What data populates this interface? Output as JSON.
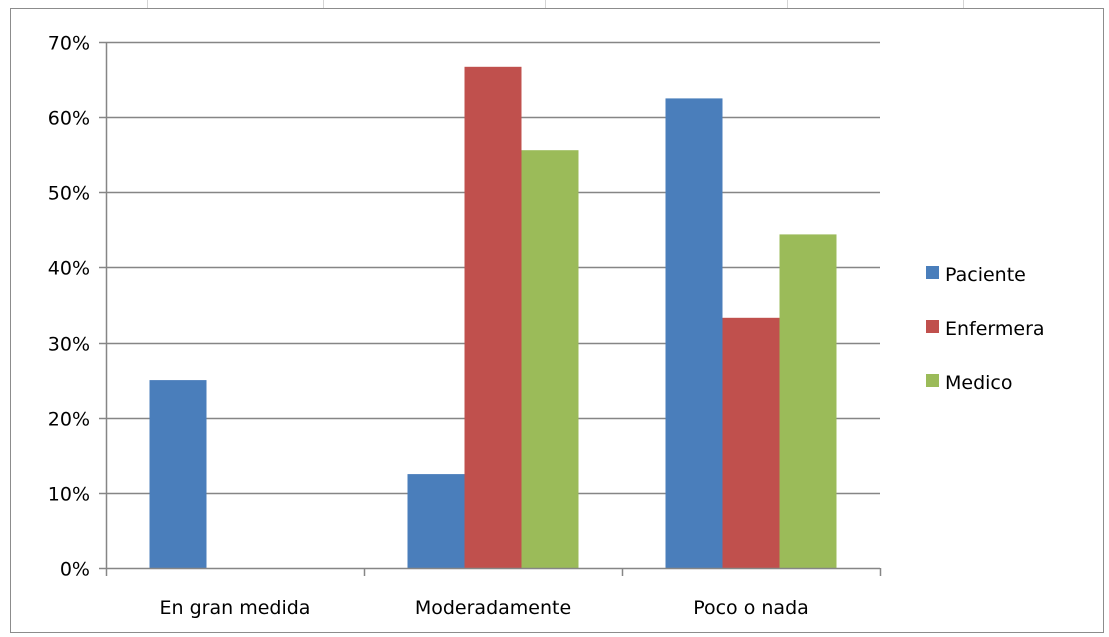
{
  "chart_data": {
    "type": "bar",
    "title": "",
    "xlabel": "",
    "ylabel": "",
    "categories": [
      "En gran medida",
      "Moderadamente",
      "Poco o nada"
    ],
    "series": [
      {
        "name": "Paciente",
        "color": "#4a7ebb",
        "values": [
          25,
          12.5,
          62.5
        ]
      },
      {
        "name": "Enfermera",
        "color": "#c0504d",
        "values": [
          0,
          66.7,
          33.3
        ]
      },
      {
        "name": "Medico",
        "color": "#9bbb59",
        "values": [
          0,
          55.6,
          44.4
        ]
      }
    ],
    "ylim": [
      0,
      70
    ],
    "yticks": [
      0,
      10,
      20,
      30,
      40,
      50,
      60,
      70
    ],
    "ytick_format": "percent",
    "grid": true,
    "legend_position": "right"
  },
  "colors": {
    "gridline": "#868686",
    "axis": "#868686"
  }
}
